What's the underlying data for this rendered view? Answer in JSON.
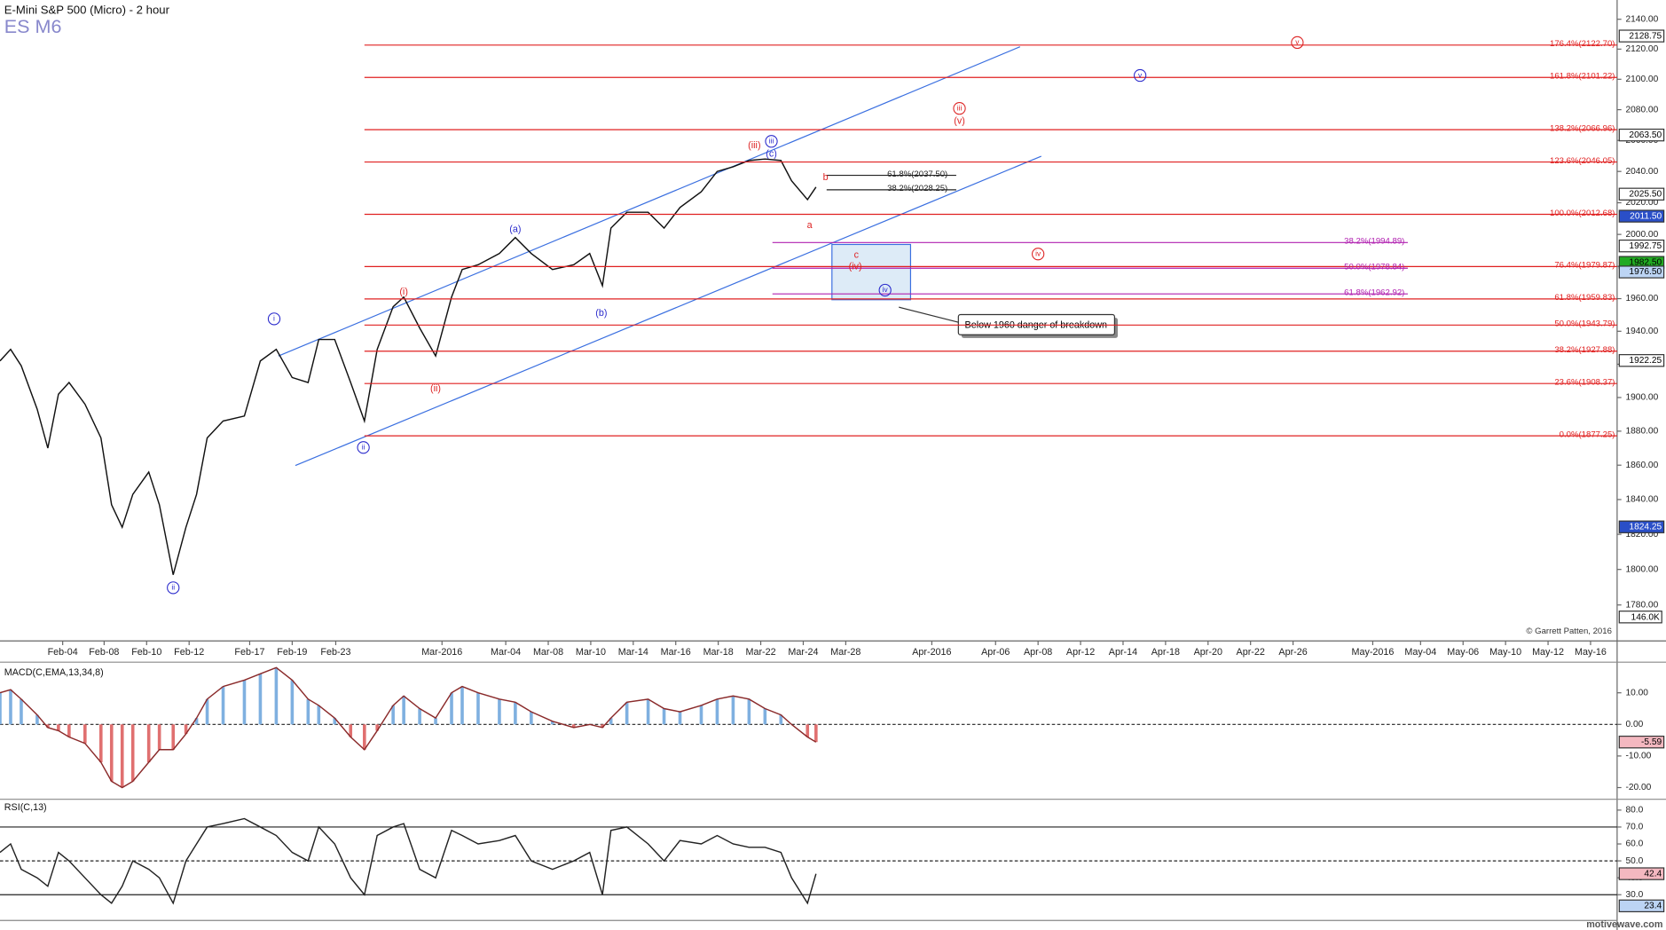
{
  "chart_data": [
    {
      "type": "line",
      "title": "E-Mini S&P 500 (Micro) - 2 hour",
      "subtitle": "ES M6",
      "credit": "© Garrett Patten, 2016",
      "watermark": "motivewave.com",
      "note": "Below 1960 danger of breakdown",
      "log": true,
      "x": [
        -2.95,
        -2.45,
        -1.95,
        -1.2,
        -0.7,
        -0.2,
        0.3,
        1.05,
        1.8,
        2.3,
        2.8,
        3.3,
        4.05,
        4.55,
        5.2,
        5.8,
        6.3,
        6.8,
        7.55,
        8.55,
        9.3,
        10.05,
        10.8,
        11.55,
        12.05,
        12.8,
        13.55,
        14.2,
        14.8,
        15.55,
        16.05,
        16.8,
        17.55,
        18.3,
        18.8,
        19.55,
        20.55,
        21.3,
        22.05,
        23.05,
        24.05,
        24.8,
        25.4,
        25.8,
        26.55,
        27.55,
        28.3,
        29.05,
        30.05,
        30.8,
        31.55,
        32.3,
        33.05,
        33.8,
        34.3,
        35.05,
        35.45
      ],
      "series": [
        {
          "color": "#111111",
          "values": [
            1922,
            1929,
            1919,
            1893,
            1870,
            1902,
            1909,
            1896,
            1876,
            1837,
            1824,
            1843,
            1856,
            1837,
            1797,
            1824,
            1843,
            1876,
            1886,
            1889,
            1922,
            1929,
            1912,
            1909,
            1935,
            1935,
            1909,
            1886,
            1929,
            1955,
            1961,
            1942,
            1925,
            1961,
            1978,
            1981,
            1988,
            1998,
            1988,
            1978,
            1981,
            1988,
            1968,
            2004,
            2014,
            2014,
            2004,
            2017,
            2027,
            2040,
            2043,
            2047,
            2048,
            2047,
            2034,
            2022,
            2030
          ]
        }
      ],
      "xlim": [
        -2.95,
        73.15
      ],
      "xticks": [
        {
          "value": 0,
          "label": "Feb-04"
        },
        {
          "value": 1.95,
          "label": "Feb-08"
        },
        {
          "value": 3.95,
          "label": "Feb-10"
        },
        {
          "value": 5.95,
          "label": "Feb-12"
        },
        {
          "value": 8.8,
          "label": "Feb-17"
        },
        {
          "value": 10.8,
          "label": "Feb-19"
        },
        {
          "value": 12.85,
          "label": "Feb-23"
        },
        {
          "value": 17.85,
          "label": "Mar-2016"
        },
        {
          "value": 20.85,
          "label": "Mar-04"
        },
        {
          "value": 22.85,
          "label": "Mar-08"
        },
        {
          "value": 24.85,
          "label": "Mar-10"
        },
        {
          "value": 26.85,
          "label": "Mar-14"
        },
        {
          "value": 28.85,
          "label": "Mar-16"
        },
        {
          "value": 30.85,
          "label": "Mar-18"
        },
        {
          "value": 32.85,
          "label": "Mar-22"
        },
        {
          "value": 34.85,
          "label": "Mar-24"
        },
        {
          "value": 36.85,
          "label": "Mar-28"
        },
        {
          "value": 40.9,
          "label": "Apr-2016"
        },
        {
          "value": 43.9,
          "label": "Apr-06"
        },
        {
          "value": 45.9,
          "label": "Apr-08"
        },
        {
          "value": 47.9,
          "label": "Apr-12"
        },
        {
          "value": 49.9,
          "label": "Apr-14"
        },
        {
          "value": 51.9,
          "label": "Apr-18"
        },
        {
          "value": 53.9,
          "label": "Apr-20"
        },
        {
          "value": 55.9,
          "label": "Apr-22"
        },
        {
          "value": 57.9,
          "label": "Apr-26"
        },
        {
          "value": 61.65,
          "label": "May-2016"
        },
        {
          "value": 63.9,
          "label": "May-04"
        },
        {
          "value": 65.9,
          "label": "May-06"
        },
        {
          "value": 67.9,
          "label": "May-10"
        },
        {
          "value": 69.9,
          "label": "May-12"
        },
        {
          "value": 71.9,
          "label": "May-16"
        }
      ],
      "ylim": [
        1760,
        2153
      ],
      "yticks": [
        {
          "value": 1780,
          "label": "1780.00"
        },
        {
          "value": 1800,
          "label": "1800.00"
        },
        {
          "value": 1820,
          "label": "1820.00"
        },
        {
          "value": 1840,
          "label": "1840.00"
        },
        {
          "value": 1860,
          "label": "1860.00"
        },
        {
          "value": 1880,
          "label": "1880.00"
        },
        {
          "value": 1900,
          "label": "1900.00"
        },
        {
          "value": 1920,
          "label": "1920.00"
        },
        {
          "value": 1940,
          "label": "1940.00"
        },
        {
          "value": 1960,
          "label": "1960.00"
        },
        {
          "value": 1980,
          "label": "1980.00"
        },
        {
          "value": 2000,
          "label": "2000.00"
        },
        {
          "value": 2020,
          "label": "2020.00"
        },
        {
          "value": 2040,
          "label": "2040.00"
        },
        {
          "value": 2060,
          "label": "2060.00"
        },
        {
          "value": 2080,
          "label": "2080.00"
        },
        {
          "value": 2100,
          "label": "2100.00"
        },
        {
          "value": 2120,
          "label": "2120.00"
        },
        {
          "value": 2140,
          "label": "2140.00"
        }
      ],
      "fib_levels": [
        {
          "value": 2122.7,
          "label": "176.4%(2122.70)",
          "color": "#e02020"
        },
        {
          "value": 2101.22,
          "label": "161.8%(2101.22)",
          "color": "#e02020"
        },
        {
          "value": 2066.96,
          "label": "138.2%(2066.96)",
          "color": "#e02020"
        },
        {
          "value": 2046.05,
          "label": "123.6%(2046.05)",
          "color": "#e02020"
        },
        {
          "value": 2012.68,
          "label": "100.0%(2012.68)",
          "color": "#e02020"
        },
        {
          "value": 1979.87,
          "label": "76.4%(1979.87)",
          "color": "#e02020"
        },
        {
          "value": 1959.83,
          "label": "61.8%(1959.83)",
          "color": "#e02020"
        },
        {
          "value": 1943.79,
          "label": "50.0%(1943.79)",
          "color": "#e02020"
        },
        {
          "value": 1927.88,
          "label": "38.2%(1927.88)",
          "color": "#e02020"
        },
        {
          "value": 1908.37,
          "label": "23.6%(1908.37)",
          "color": "#e02020"
        },
        {
          "value": 1877.25,
          "label": "0.0%(1877.25)",
          "color": "#e02020"
        }
      ],
      "retrace_levels": [
        {
          "value": 1994.89,
          "label": "38.2%(1994.89)",
          "color": "#b020b0"
        },
        {
          "value": 1978.84,
          "label": "50.0%(1978.84)",
          "color": "#b020b0"
        },
        {
          "value": 1962.92,
          "label": "61.8%(1962.92)",
          "color": "#b020b0"
        }
      ],
      "target_levels": [
        {
          "value": 2037.5,
          "label": "61.8%(2037.50)",
          "color": "#222222"
        },
        {
          "value": 2028.25,
          "label": "38.2%(2028.25)",
          "color": "#222222"
        }
      ],
      "price_tags": [
        {
          "value": 2128.75,
          "label": "2128.75",
          "fill": "#ffffff",
          "text_color": "#000000"
        },
        {
          "value": 2063.5,
          "label": "2063.50",
          "fill": "#ffffff",
          "text_color": "#000000"
        },
        {
          "value": 2025.5,
          "label": "2025.50",
          "fill": "#ffffff",
          "text_color": "#000000"
        },
        {
          "value": 2011.5,
          "label": "2011.50",
          "fill": "#2a4fc8",
          "text_color": "#ffffff"
        },
        {
          "value": 1992.75,
          "label": "1992.75",
          "fill": "#ffffff",
          "text_color": "#000000"
        },
        {
          "value": 1982.5,
          "label": "1982.50",
          "fill": "#22aa22",
          "text_color": "#000000"
        },
        {
          "value": 1976.5,
          "label": "1976.50",
          "fill": "#bcd4f4",
          "text_color": "#000000"
        },
        {
          "value": 1922.25,
          "label": "1922.25",
          "fill": "#ffffff",
          "text_color": "#000000"
        },
        {
          "value": 1824.25,
          "label": "1824.25",
          "fill": "#2a4fc8",
          "text_color": "#ffffff"
        }
      ],
      "volume_tag": "146.0K",
      "annotations": [
        {
          "text": "i",
          "color": "#2a2acc",
          "circled": true
        },
        {
          "text": "ii",
          "color": "#2a2acc",
          "circled": true
        },
        {
          "text": "ii",
          "color": "#2a2acc",
          "circled": true
        },
        {
          "text": "iii",
          "color": "#2a2acc",
          "circled": true
        },
        {
          "text": "iv",
          "color": "#2a2acc",
          "circled": true
        },
        {
          "text": "v",
          "color": "#2a2acc",
          "circled": true
        },
        {
          "text": "iii",
          "color": "#dd2222",
          "circled": true
        },
        {
          "text": "iv",
          "color": "#dd2222",
          "circled": true
        },
        {
          "text": "v",
          "color": "#dd2222",
          "circled": true
        },
        {
          "text": "(i)",
          "color": "#dd2222",
          "circled": false
        },
        {
          "text": "(ii)",
          "color": "#dd2222",
          "circled": false
        },
        {
          "text": "(iii)",
          "color": "#dd2222",
          "circled": false
        },
        {
          "text": "(a)",
          "color": "#2a2acc",
          "circled": false
        },
        {
          "text": "(b)",
          "color": "#2a2acc",
          "circled": false
        },
        {
          "text": "(c)",
          "color": "#2a2acc",
          "circled": false
        },
        {
          "text": "(iv)",
          "color": "#dd2222",
          "circled": false
        },
        {
          "text": "(v)",
          "color": "#dd2222",
          "circled": false
        },
        {
          "text": "a",
          "color": "#dd2222",
          "circled": false
        },
        {
          "text": "b",
          "color": "#dd2222",
          "circled": false
        },
        {
          "text": "c",
          "color": "#dd2222",
          "circled": false
        }
      ]
    },
    {
      "type": "line",
      "title": "MACD(C,EMA,13,34,8)",
      "series": [
        {
          "color": "#8a2a2a",
          "values": [
            10,
            11,
            8,
            3,
            -1,
            -2,
            -4,
            -6,
            -12,
            -18,
            -20,
            -18,
            -12,
            -8,
            -8,
            -3,
            2,
            8,
            12,
            14,
            16,
            18,
            14,
            8,
            6,
            2,
            -4,
            -8,
            -2,
            6,
            9,
            5,
            2,
            10,
            12,
            10,
            8,
            7,
            4,
            1,
            -1,
            0,
            -1,
            2,
            7,
            8,
            5,
            4,
            6,
            8,
            9,
            8,
            5,
            3,
            0,
            -4,
            -5.59
          ]
        }
      ],
      "bar_colors": {
        "up": "#7fb0e0",
        "down": "#e07070"
      },
      "ylim": [
        -23.7,
        19.7
      ],
      "yticks": [
        {
          "value": 10,
          "label": "10.00"
        },
        {
          "value": 0,
          "label": "0.00"
        },
        {
          "value": -10,
          "label": "-10.00"
        },
        {
          "value": -20,
          "label": "-20.00"
        }
      ],
      "price_tags": [
        {
          "value": -5.59,
          "label": "-5.59",
          "fill": "#f4b8c0",
          "text_color": "#000000"
        }
      ]
    },
    {
      "type": "line",
      "title": "RSI(C,13)",
      "series": [
        {
          "color": "#222222",
          "values": [
            55,
            60,
            45,
            40,
            35,
            55,
            50,
            40,
            30,
            25,
            35,
            50,
            45,
            40,
            25,
            50,
            60,
            70,
            72,
            75,
            70,
            65,
            55,
            50,
            70,
            60,
            40,
            30,
            65,
            70,
            72,
            45,
            40,
            68,
            65,
            60,
            62,
            65,
            50,
            45,
            50,
            55,
            30,
            68,
            70,
            60,
            50,
            62,
            60,
            65,
            60,
            58,
            58,
            55,
            40,
            25,
            42.4
          ]
        }
      ],
      "ylim": [
        14.8,
        86.4
      ],
      "yticks": [
        {
          "value": 80,
          "label": "80.0"
        },
        {
          "value": 70,
          "label": "70.0"
        },
        {
          "value": 60,
          "label": "60.0"
        },
        {
          "value": 50,
          "label": "50.0"
        },
        {
          "value": 40,
          "label": "40.0"
        },
        {
          "value": 30,
          "label": "30.0"
        }
      ],
      "levels": [
        70,
        50,
        30
      ],
      "price_tags": [
        {
          "value": 42.4,
          "label": "42.4",
          "fill": "#f4b8c0",
          "text_color": "#000000"
        },
        {
          "value": 23.4,
          "label": "23.4",
          "fill": "#bcd4f4",
          "text_color": "#000000"
        }
      ]
    }
  ]
}
